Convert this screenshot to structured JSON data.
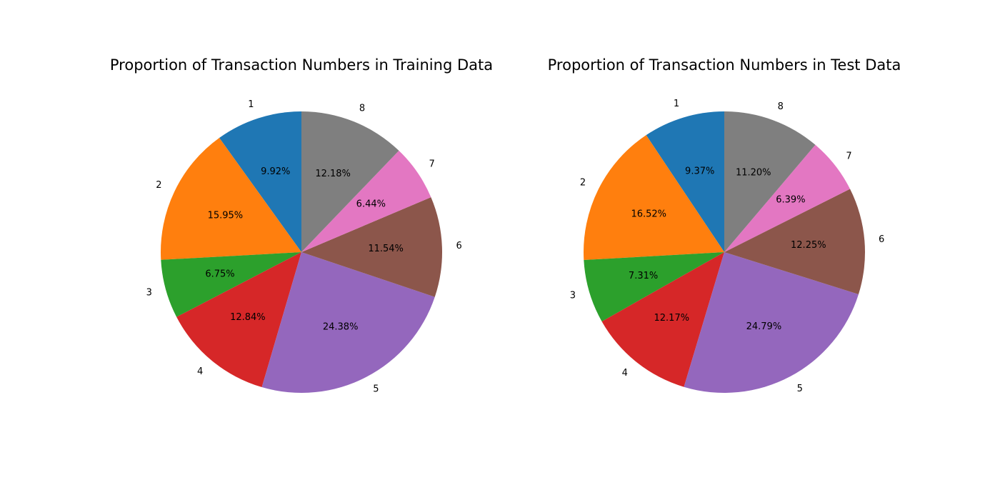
{
  "chart_data": [
    {
      "type": "pie",
      "title": "Proportion of Transaction Numbers in Training Data",
      "labels": [
        "1",
        "2",
        "3",
        "4",
        "5",
        "6",
        "7",
        "8"
      ],
      "values": [
        9.92,
        15.95,
        6.75,
        12.84,
        24.38,
        11.54,
        6.44,
        12.18
      ],
      "value_labels": [
        "9.92%",
        "15.95%",
        "6.75%",
        "12.84%",
        "24.38%",
        "11.54%",
        "6.44%",
        "12.18%"
      ],
      "colors": [
        "#1f77b4",
        "#ff7f0e",
        "#2ca02c",
        "#d62728",
        "#9467bd",
        "#8c564b",
        "#e377c2",
        "#7f7f7f"
      ],
      "start_angle": 90,
      "direction": "counterclockwise"
    },
    {
      "type": "pie",
      "title": "Proportion of Transaction Numbers in Test Data",
      "labels": [
        "1",
        "2",
        "3",
        "4",
        "5",
        "6",
        "7",
        "8"
      ],
      "values": [
        9.37,
        16.52,
        7.31,
        12.17,
        24.79,
        12.25,
        6.39,
        11.2
      ],
      "value_labels": [
        "9.37%",
        "16.52%",
        "7.31%",
        "12.17%",
        "24.79%",
        "12.25%",
        "6.39%",
        "11.20%"
      ],
      "colors": [
        "#1f77b4",
        "#ff7f0e",
        "#2ca02c",
        "#d62728",
        "#9467bd",
        "#8c564b",
        "#e377c2",
        "#7f7f7f"
      ],
      "start_angle": 90,
      "direction": "counterclockwise"
    }
  ]
}
